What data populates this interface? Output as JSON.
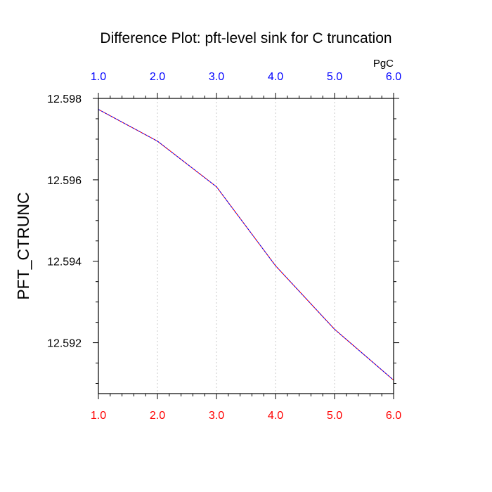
{
  "chart_data": {
    "type": "line",
    "title": "Difference Plot: pft-level sink for C truncation",
    "ylabel": "PFT_CTRUNC",
    "units": "PgC",
    "x": [
      1.0,
      2.0,
      3.0,
      4.0,
      5.0,
      6.0
    ],
    "series": [
      {
        "values": [
          12.59773,
          12.59695,
          12.59583,
          12.59389,
          12.59233,
          12.59108
        ],
        "color": "#0000ff",
        "dash_color": "#ff0000",
        "style": "dashed"
      }
    ],
    "xlim": [
      1.0,
      6.0
    ],
    "ylim": [
      12.59075,
      12.598
    ],
    "x_ticks": [
      1.0,
      2.0,
      3.0,
      4.0,
      5.0,
      6.0
    ],
    "x_tick_labels_bottom": [
      "1.0",
      "2.0",
      "3.0",
      "4.0",
      "5.0",
      "6.0"
    ],
    "x_tick_labels_top": [
      "1.0",
      "2.0",
      "3.0",
      "4.0",
      "5.0",
      "6.0"
    ],
    "y_ticks": [
      12.592,
      12.594,
      12.596,
      12.598
    ],
    "y_tick_labels": [
      "12.592",
      "12.594",
      "12.596",
      "12.598"
    ],
    "bottom_tick_color": "#ff0000",
    "top_tick_color": "#0000ff",
    "vertical_grid": true,
    "grid_style": "dotted"
  }
}
